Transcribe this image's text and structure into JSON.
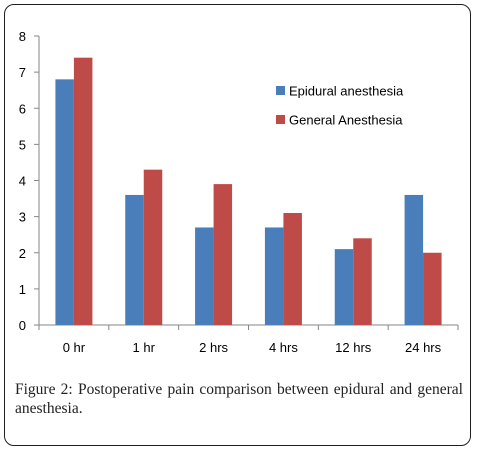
{
  "chart_data": {
    "type": "bar",
    "categories": [
      "0 hr",
      "1 hr",
      "2 hrs",
      "4 hrs",
      "12 hrs",
      "24 hrs"
    ],
    "series": [
      {
        "name": "Epidural anesthesia",
        "values": [
          6.8,
          3.6,
          2.7,
          2.7,
          2.1,
          3.6
        ]
      },
      {
        "name": "General Anesthesia",
        "values": [
          7.4,
          4.3,
          3.9,
          3.1,
          2.4,
          2.0
        ]
      }
    ],
    "colors": [
      "#4a7ebb",
      "#be4b48"
    ],
    "title": "",
    "xlabel": "",
    "ylabel": "",
    "ylim": [
      0,
      8
    ],
    "yticks": [
      "0",
      "1",
      "2",
      "3",
      "4",
      "5",
      "6",
      "7",
      "8"
    ],
    "grid": false,
    "legend_position": "right"
  },
  "caption": {
    "label": "Figure 2:",
    "text": " Postoperative pain comparison between epidural and general anesthesia."
  }
}
